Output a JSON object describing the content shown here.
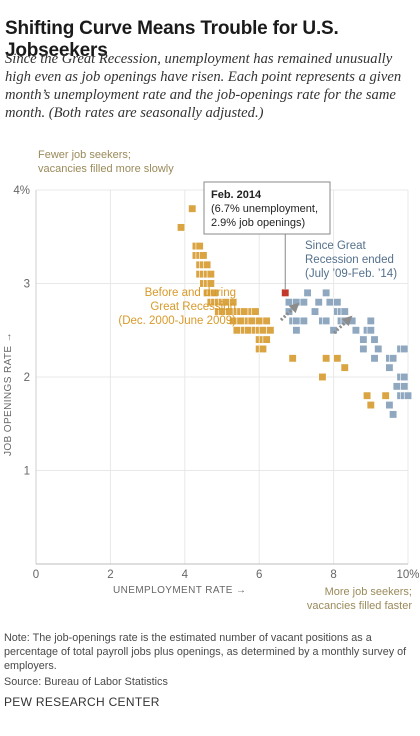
{
  "header": {
    "title": "Shifting Curve Means Trouble for U.S. Jobseekers",
    "subtitle": "Since the Great Recession, unemployment has remained unusually high even as job openings have risen. Each point represents a given month’s unemployment rate and the job-openings rate for the same month. (Both rates are seasonally adjusted.)"
  },
  "footer": {
    "note": "Note: The job-openings rate is the estimated number of vacant positions as a percentage of total payroll jobs plus openings, as determined by a monthly survey of employers.",
    "source": "Source: Bureau of Labor Statistics",
    "org": "PEW RESEARCH CENTER"
  },
  "colors": {
    "before": "#d9a441",
    "after": "#8fa8c0",
    "highlight": "#c0392b",
    "after_label": "#54708c",
    "before_label": "#d99a29",
    "axis_text": "#666666",
    "grid": "#e8e8e8"
  },
  "chart_data": {
    "type": "scatter",
    "xlabel": "UNEMPLOYMENT RATE →",
    "ylabel": "JOB OPENINGS RATE →",
    "xlim": [
      0,
      10
    ],
    "ylim": [
      0,
      4
    ],
    "x_ticks": [
      0,
      2,
      4,
      6,
      8,
      10
    ],
    "x_tick_labels": [
      "0",
      "2",
      "4",
      "6",
      "8",
      "10%"
    ],
    "y_ticks": [
      1,
      2,
      3,
      4
    ],
    "y_tick_labels": [
      "1",
      "2",
      "3",
      "4%"
    ],
    "grid": true,
    "annotations": {
      "top_left": [
        "Fewer job seekers;",
        "vacancies filled more slowly"
      ],
      "bottom_right": [
        "More job seekers;",
        "vacancies filled faster"
      ],
      "callout": {
        "title": "Feb. 2014",
        "lines": [
          "(6.7% unemployment,",
          "2.9% job openings)"
        ],
        "x": 6.7,
        "y": 2.9
      },
      "after_label": [
        "Since Great",
        "Recession ended",
        "(July ’09-Feb. ’14)"
      ],
      "before_label": [
        "Before and during",
        "Great Recession",
        "(Dec. 2000-June 2009)"
      ]
    },
    "series": [
      {
        "name": "Before and during Great Recession (Dec. 2000-June 2009)",
        "points": [
          [
            3.9,
            3.6
          ],
          [
            4.2,
            3.8
          ],
          [
            4.3,
            3.4
          ],
          [
            4.4,
            3.4
          ],
          [
            4.3,
            3.3
          ],
          [
            4.4,
            3.3
          ],
          [
            4.5,
            3.3
          ],
          [
            4.4,
            3.2
          ],
          [
            4.5,
            3.2
          ],
          [
            4.6,
            3.2
          ],
          [
            4.4,
            3.1
          ],
          [
            4.5,
            3.1
          ],
          [
            4.6,
            3.1
          ],
          [
            4.7,
            3.1
          ],
          [
            4.5,
            3.0
          ],
          [
            4.6,
            3.0
          ],
          [
            4.7,
            3.0
          ],
          [
            4.6,
            2.9
          ],
          [
            4.7,
            2.9
          ],
          [
            4.8,
            2.9
          ],
          [
            4.7,
            2.8
          ],
          [
            4.8,
            2.8
          ],
          [
            4.9,
            2.8
          ],
          [
            5.0,
            2.8
          ],
          [
            5.1,
            2.8
          ],
          [
            5.3,
            2.8
          ],
          [
            4.9,
            2.7
          ],
          [
            5.0,
            2.7
          ],
          [
            5.2,
            2.7
          ],
          [
            5.4,
            2.7
          ],
          [
            5.5,
            2.7
          ],
          [
            5.6,
            2.7
          ],
          [
            5.8,
            2.7
          ],
          [
            5.9,
            2.7
          ],
          [
            5.3,
            2.6
          ],
          [
            5.5,
            2.6
          ],
          [
            5.7,
            2.6
          ],
          [
            5.8,
            2.6
          ],
          [
            6.0,
            2.6
          ],
          [
            6.2,
            2.6
          ],
          [
            5.4,
            2.5
          ],
          [
            5.6,
            2.5
          ],
          [
            5.7,
            2.5
          ],
          [
            5.9,
            2.5
          ],
          [
            6.0,
            2.5
          ],
          [
            6.1,
            2.5
          ],
          [
            6.3,
            2.5
          ],
          [
            6.0,
            2.4
          ],
          [
            6.1,
            2.4
          ],
          [
            6.2,
            2.4
          ],
          [
            6.0,
            2.3
          ],
          [
            6.1,
            2.3
          ],
          [
            6.9,
            2.2
          ],
          [
            7.8,
            2.2
          ],
          [
            8.1,
            2.2
          ],
          [
            7.7,
            2.0
          ],
          [
            8.3,
            2.1
          ],
          [
            8.9,
            1.8
          ],
          [
            9.4,
            1.8
          ],
          [
            9.0,
            1.7
          ]
        ]
      },
      {
        "name": "Since Great Recession ended (July ’09-Feb. ’14)",
        "points": [
          [
            6.8,
            2.8
          ],
          [
            6.8,
            2.7
          ],
          [
            6.9,
            2.6
          ],
          [
            7.0,
            2.6
          ],
          [
            7.2,
            2.6
          ],
          [
            7.0,
            2.5
          ],
          [
            7.0,
            2.8
          ],
          [
            7.2,
            2.8
          ],
          [
            7.3,
            2.9
          ],
          [
            7.5,
            2.7
          ],
          [
            7.6,
            2.8
          ],
          [
            7.8,
            2.9
          ],
          [
            7.9,
            2.8
          ],
          [
            7.7,
            2.6
          ],
          [
            7.8,
            2.6
          ],
          [
            8.0,
            2.5
          ],
          [
            8.1,
            2.8
          ],
          [
            8.1,
            2.7
          ],
          [
            8.2,
            2.7
          ],
          [
            8.3,
            2.7
          ],
          [
            8.2,
            2.6
          ],
          [
            8.3,
            2.6
          ],
          [
            8.5,
            2.6
          ],
          [
            8.6,
            2.5
          ],
          [
            8.8,
            2.4
          ],
          [
            8.8,
            2.3
          ],
          [
            8.9,
            2.5
          ],
          [
            9.0,
            2.6
          ],
          [
            9.0,
            2.5
          ],
          [
            9.1,
            2.4
          ],
          [
            9.1,
            2.2
          ],
          [
            9.2,
            2.3
          ],
          [
            9.5,
            2.2
          ],
          [
            9.6,
            2.2
          ],
          [
            9.5,
            2.1
          ],
          [
            9.8,
            2.3
          ],
          [
            9.9,
            2.3
          ],
          [
            9.8,
            2.0
          ],
          [
            9.9,
            2.0
          ],
          [
            9.7,
            1.9
          ],
          [
            9.9,
            1.9
          ],
          [
            9.8,
            1.8
          ],
          [
            9.9,
            1.8
          ],
          [
            10.0,
            1.8
          ],
          [
            9.6,
            1.6
          ],
          [
            9.5,
            1.7
          ]
        ]
      }
    ],
    "highlight_point": [
      6.7,
      2.9
    ]
  }
}
